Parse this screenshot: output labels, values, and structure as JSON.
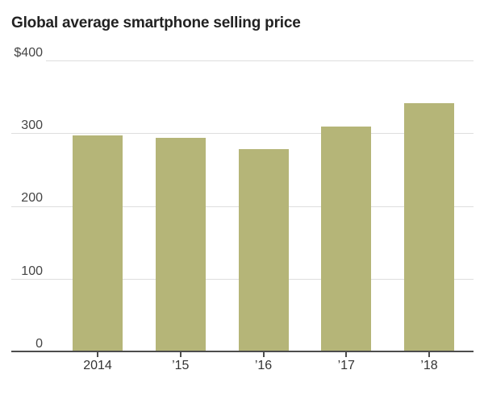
{
  "header": {
    "title": "Global average smartphone selling price"
  },
  "chart_data": {
    "type": "bar",
    "title": "Global average smartphone selling price",
    "categories": [
      "2014",
      "’15",
      "’16",
      "’17",
      "’18"
    ],
    "values": [
      298,
      294,
      279,
      310,
      342
    ],
    "currency_prefix": "$",
    "xlabel": "",
    "ylabel": "",
    "ylim": [
      0,
      400
    ],
    "yticks": [
      0,
      100,
      200,
      300,
      400
    ],
    "ytick_labels": [
      "0",
      "100",
      "200",
      "300",
      "$400"
    ],
    "grid": true,
    "legend_position": "none",
    "colors": {
      "bar": "#b5b578",
      "gridline": "#dedede",
      "axis": "#4d4d4d",
      "tick_label": "#454545",
      "xtick_label": "#333333",
      "title": "#222222"
    }
  }
}
